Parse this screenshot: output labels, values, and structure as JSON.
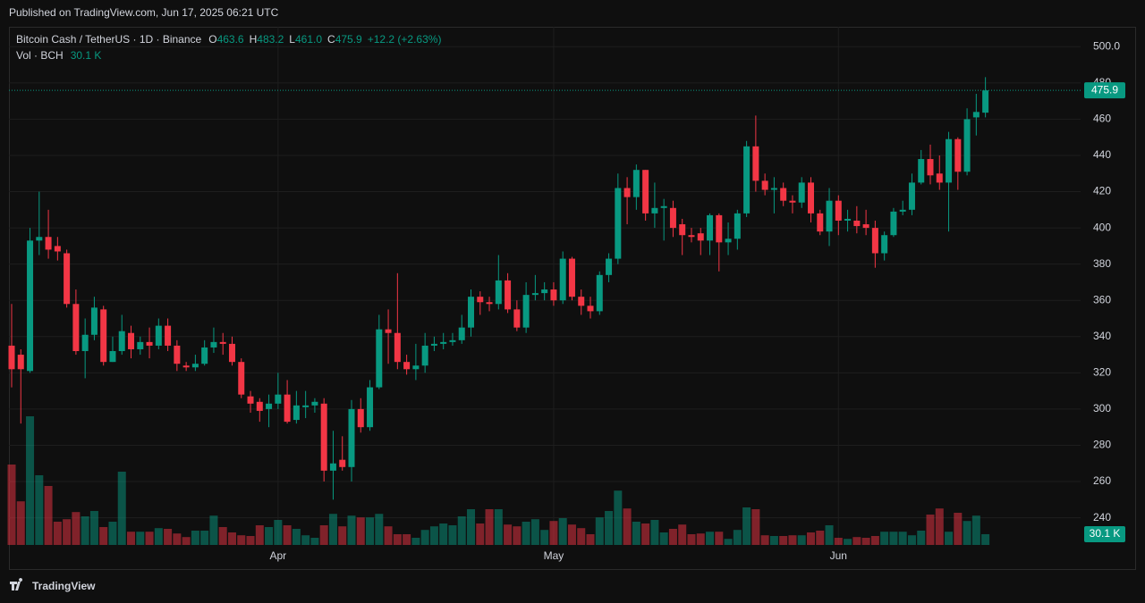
{
  "page": {
    "published": "Published on TradingView.com, Jun 17, 2025 06:21 UTC",
    "brand": "TradingView"
  },
  "chart_data": {
    "type": "candlestick",
    "title": "Bitcoin Cash / TetherUS · 1D · Binance",
    "ohlc": [
      {
        "label": "O",
        "value": "463.6"
      },
      {
        "label": "H",
        "value": "483.2"
      },
      {
        "label": "L",
        "value": "461.0"
      },
      {
        "label": "C",
        "value": "475.9"
      }
    ],
    "change": "+12.2 (+2.63%)",
    "volume_title": "Vol · BCH",
    "volume_label": "30.1 K",
    "up_color": "#089981",
    "down_color": "#f23645",
    "grid": true,
    "ylim": [
      225,
      511
    ],
    "yticks": [
      240,
      260,
      280,
      300,
      320,
      340,
      360,
      380,
      400,
      420,
      440,
      460,
      480,
      {
        "value": 500,
        "label": "500.0"
      }
    ],
    "categories": [
      null,
      null,
      null,
      null,
      null,
      null,
      null,
      null,
      null,
      null,
      null,
      null,
      null,
      null,
      null,
      null,
      null,
      null,
      null,
      null,
      null,
      null,
      null,
      null,
      null,
      null,
      null,
      null,
      null,
      "Apr",
      null,
      null,
      null,
      null,
      null,
      null,
      null,
      null,
      null,
      null,
      null,
      null,
      null,
      null,
      null,
      null,
      null,
      null,
      null,
      null,
      null,
      null,
      null,
      null,
      null,
      null,
      null,
      null,
      null,
      "May",
      null,
      null,
      null,
      null,
      null,
      null,
      null,
      null,
      null,
      null,
      null,
      null,
      null,
      null,
      null,
      null,
      null,
      null,
      null,
      null,
      null,
      null,
      null,
      null,
      null,
      null,
      null,
      null,
      null,
      null,
      "Jun",
      null,
      null,
      null,
      null,
      null,
      null,
      null,
      null,
      null,
      null,
      null,
      null,
      null,
      null,
      null,
      null
    ],
    "open": [
      335,
      330,
      321,
      393,
      395,
      390,
      386,
      358,
      332,
      341,
      355,
      326,
      332,
      342,
      333,
      337,
      335,
      346,
      335,
      324,
      323,
      325,
      334,
      337,
      336,
      326,
      307,
      304,
      300,
      303,
      308,
      294,
      301,
      302,
      303,
      266,
      272,
      268,
      300,
      290,
      312,
      344,
      342,
      326,
      322,
      324,
      335,
      336,
      337,
      338,
      345,
      362,
      359,
      358,
      371,
      355,
      345,
      363,
      364,
      366,
      360,
      383,
      362,
      357,
      354,
      374,
      383,
      422,
      417,
      432,
      408,
      411,
      411,
      402,
      396,
      397,
      393,
      407,
      392,
      394,
      408,
      445,
      426,
      421,
      422,
      415,
      414,
      425,
      408,
      398,
      415,
      404,
      404,
      402,
      400,
      386,
      396,
      409,
      410,
      425,
      438,
      430,
      425,
      449,
      431,
      461,
      463.6
    ],
    "high": [
      358,
      333,
      400,
      420,
      410,
      395,
      388,
      366,
      350,
      362,
      357,
      340,
      352,
      346,
      340,
      345,
      350,
      350,
      338,
      326,
      330,
      338,
      345,
      342,
      340,
      328,
      310,
      306,
      308,
      320,
      316,
      310,
      310,
      306,
      306,
      288,
      285,
      305,
      306,
      316,
      352,
      355,
      375,
      330,
      336,
      342,
      340,
      342,
      342,
      352,
      366,
      365,
      362,
      385,
      375,
      360,
      370,
      374,
      370,
      370,
      387,
      384,
      366,
      362,
      376,
      386,
      430,
      428,
      435,
      432,
      425,
      416,
      415,
      405,
      400,
      400,
      408,
      408,
      403,
      410,
      448,
      462,
      430,
      428,
      425,
      418,
      428,
      428,
      410,
      422,
      418,
      410,
      412,
      410,
      404,
      398,
      411,
      415,
      430,
      443,
      446,
      440,
      453,
      450,
      466,
      474,
      483.2
    ],
    "low": [
      312,
      292,
      320,
      385,
      383,
      382,
      356,
      330,
      317,
      338,
      324,
      326,
      330,
      328,
      330,
      328,
      333,
      332,
      321,
      321,
      321,
      324,
      331,
      330,
      324,
      306,
      298,
      293,
      290,
      300,
      292,
      292,
      295,
      298,
      260,
      250,
      266,
      260,
      287,
      288,
      311,
      325,
      322,
      319,
      316,
      320,
      332,
      333,
      335,
      336,
      340,
      352,
      354,
      355,
      353,
      343,
      342,
      360,
      360,
      357,
      358,
      360,
      352,
      350,
      352,
      370,
      380,
      402,
      410,
      404,
      400,
      393,
      395,
      385,
      392,
      385,
      385,
      376,
      385,
      388,
      406,
      420,
      418,
      408,
      412,
      408,
      411,
      403,
      396,
      390,
      396,
      398,
      397,
      396,
      378,
      382,
      395,
      407,
      407,
      424,
      424,
      421,
      398,
      421,
      429,
      451,
      461.0
    ],
    "close": [
      322,
      322,
      393,
      395,
      388,
      387,
      358,
      332,
      341,
      356,
      326,
      332,
      343,
      333,
      337,
      335,
      346,
      335,
      325,
      323,
      325,
      334,
      337,
      336,
      326,
      308,
      303,
      299,
      303,
      308,
      293,
      302,
      302,
      304,
      266,
      270,
      268,
      300,
      290,
      312,
      344,
      342,
      326,
      322,
      324,
      335,
      336,
      337,
      338,
      345,
      362,
      359,
      358,
      371,
      355,
      345,
      363,
      364,
      366,
      360,
      383,
      362,
      357,
      354,
      374,
      383,
      422,
      417,
      432,
      408,
      411,
      412,
      400,
      396,
      395,
      393,
      407,
      392,
      394,
      408,
      445,
      426,
      421,
      422,
      415,
      414,
      425,
      408,
      398,
      415,
      404,
      405,
      401,
      400,
      386,
      396,
      409,
      410,
      425,
      438,
      429,
      425,
      449,
      431,
      460,
      464,
      475.9
    ],
    "volume": [
      225,
      122,
      360,
      195,
      165,
      65,
      72,
      92,
      80,
      95,
      50,
      65,
      205,
      37,
      37,
      37,
      47,
      45,
      32,
      22,
      40,
      40,
      82,
      50,
      35,
      27,
      25,
      55,
      50,
      70,
      55,
      45,
      27,
      20,
      55,
      87,
      52,
      82,
      77,
      77,
      87,
      52,
      30,
      30,
      20,
      42,
      52,
      60,
      55,
      80,
      100,
      60,
      100,
      100,
      57,
      52,
      65,
      72,
      42,
      67,
      75,
      57,
      47,
      30,
      77,
      95,
      152,
      102,
      65,
      60,
      70,
      35,
      45,
      57,
      30,
      32,
      37,
      37,
      17,
      42,
      105,
      100,
      27,
      25,
      25,
      27,
      27,
      35,
      40,
      55,
      20,
      17,
      22,
      20,
      25,
      37,
      37,
      37,
      27,
      40,
      85,
      102,
      37,
      90,
      67,
      82,
      30.1
    ]
  }
}
